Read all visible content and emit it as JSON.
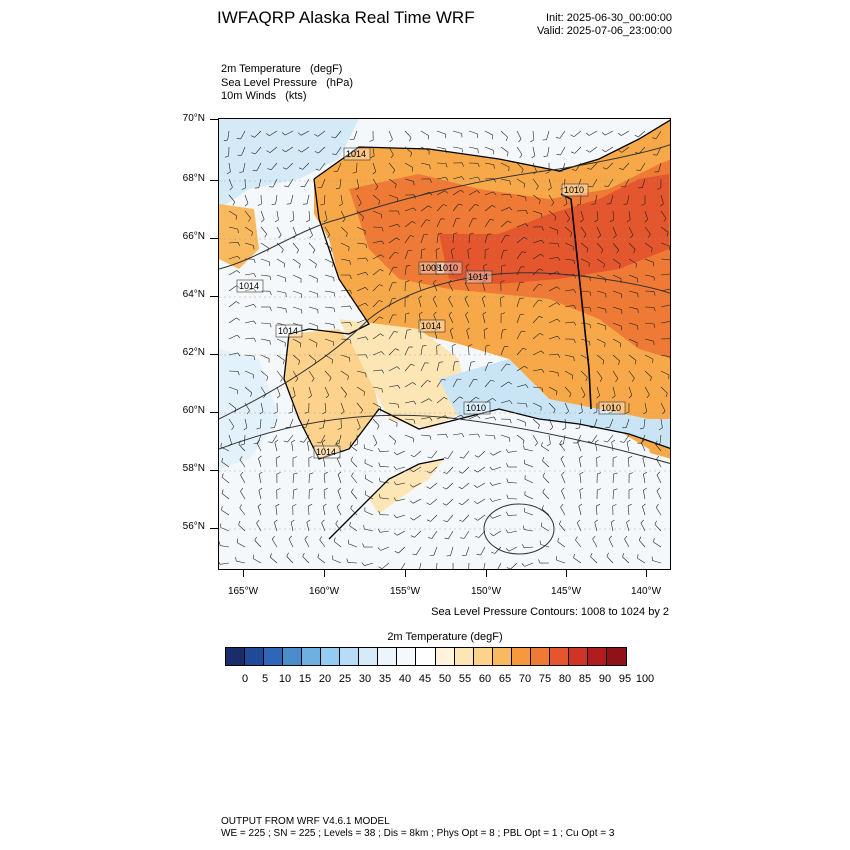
{
  "header": {
    "title": "IWFAQRP Alaska Real Time WRF",
    "init": "Init: 2025-06-30_00:00:00",
    "valid": "Valid: 2025-07-06_23:00:00"
  },
  "fields": [
    "2m Temperature   (degF)",
    "Sea Level Pressure   (hPa)",
    "10m Winds   (kts)"
  ],
  "map": {
    "lat_labels": [
      "70°N",
      "68°N",
      "66°N",
      "64°N",
      "62°N",
      "60°N",
      "58°N",
      "56°N"
    ],
    "lon_labels": [
      "165°W",
      "160°W",
      "155°W",
      "150°W",
      "145°W",
      "140°W"
    ],
    "slp_labels": [
      "1014",
      "1010",
      "1014",
      "1014",
      "1008",
      "1010",
      "1014",
      "1014",
      "1010",
      "1010",
      "1014"
    ],
    "colors": {
      "ocean": "#f4f8fb",
      "land_warm": "#f7a94a",
      "land_hot": "#e4572e",
      "land_mild": "#fbd69c",
      "cool_coast": "#c8e4f5"
    }
  },
  "slp_note": "Sea Level Pressure Contours: 1008 to 1024 by 2",
  "colorbar": {
    "title": "2m Temperature  (degF)",
    "labels": [
      "0",
      "5",
      "10",
      "15",
      "20",
      "25",
      "30",
      "35",
      "40",
      "45",
      "50",
      "55",
      "60",
      "65",
      "70",
      "75",
      "80",
      "85",
      "90",
      "95",
      "100"
    ],
    "colors": [
      "#1a2d6b",
      "#1f4a9a",
      "#2e67b8",
      "#4a8ccc",
      "#6fb0e0",
      "#94cbf0",
      "#b8dcf5",
      "#d6ebf8",
      "#ecf5fb",
      "#f6f9fb",
      "#ffffff",
      "#fff3dc",
      "#fde6b6",
      "#fcd28c",
      "#f9b95e",
      "#f6993e",
      "#ef7a35",
      "#e4572e",
      "#cf3526",
      "#b11c1f",
      "#8e1216"
    ]
  },
  "footer": {
    "line1": "OUTPUT FROM WRF V4.6.1 MODEL",
    "line2": "WE = 225 ; SN = 225 ; Levels = 38 ; Dis = 8km ; Phys Opt = 8 ; PBL Opt = 1 ; Cu Opt = 3"
  }
}
